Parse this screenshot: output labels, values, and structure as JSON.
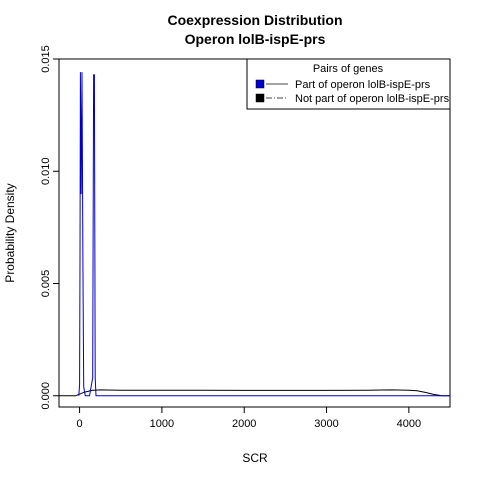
{
  "chart_data": {
    "type": "line",
    "title": "Coexpression Distribution",
    "subtitle": "Operon lolB-ispE-prs",
    "xlabel": "SCR",
    "ylabel": "Probability Density",
    "xlim": [
      -250,
      4500
    ],
    "ylim": [
      -0.0005,
      0.015
    ],
    "x_ticks": [
      0,
      1000,
      2000,
      3000,
      4000
    ],
    "x_tick_labels": [
      "0",
      "1000",
      "2000",
      "3000",
      "4000"
    ],
    "y_ticks": [
      0.0,
      0.005,
      0.01,
      0.015
    ],
    "y_tick_labels": [
      "0.000",
      "0.005",
      "0.010",
      "0.015"
    ],
    "grid": false,
    "legend": {
      "title": "Pairs of genes",
      "placement": "top-right",
      "entries": [
        {
          "label": "Part of operon lolB-ispE-prs",
          "color": "#0000cc",
          "line": "solid"
        },
        {
          "label": "Not part of operon lolB-ispE-prs",
          "color": "#000000",
          "line": "dashdot"
        }
      ]
    },
    "series": [
      {
        "name": "Part of operon lolB-ispE-prs",
        "color": "#0000cc",
        "x": [
          -10,
          0,
          5,
          10,
          20,
          30,
          40,
          50,
          70,
          120,
          160,
          170,
          180,
          190,
          200,
          210,
          4500
        ],
        "y": [
          0.0,
          0.0005,
          0.006,
          0.0144,
          0.009,
          0.0144,
          0.006,
          0.0004,
          0.0,
          0.0,
          0.0008,
          0.0143,
          0.0143,
          0.0008,
          0.0,
          0.0,
          0.0
        ]
      },
      {
        "name": "Not part of operon lolB-ispE-prs",
        "color": "#000000",
        "x": [
          -250,
          -50,
          50,
          150,
          250,
          500,
          1000,
          1500,
          2000,
          2500,
          3000,
          3500,
          3800,
          4000,
          4100,
          4200,
          4300,
          4400,
          4500
        ],
        "y": [
          0.0,
          0.0,
          0.00015,
          0.00024,
          0.00026,
          0.00025,
          0.00025,
          0.00025,
          0.00024,
          0.00024,
          0.00024,
          0.00025,
          0.00026,
          0.00025,
          0.00022,
          0.00015,
          6e-05,
          0.0,
          0.0
        ]
      }
    ]
  }
}
